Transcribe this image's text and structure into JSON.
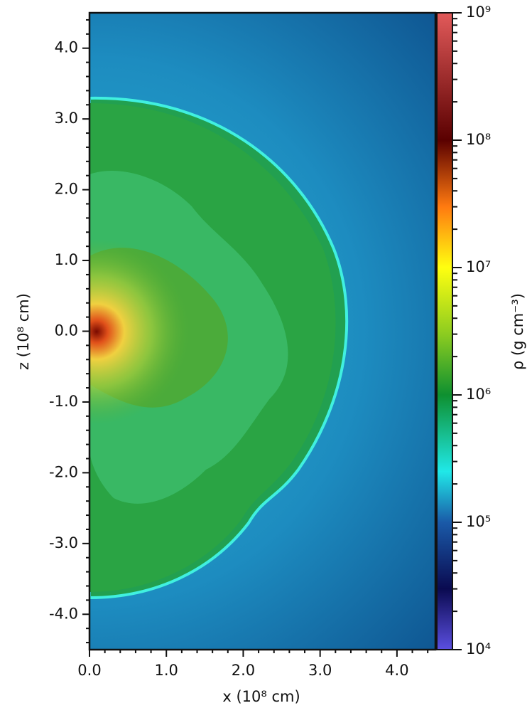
{
  "chart_data": {
    "type": "image",
    "xlabel": "x (10⁸ cm)",
    "ylabel": "z (10⁸ cm)",
    "colorbar_label": "ρ (g cm⁻³)",
    "xlim": [
      0,
      4.5
    ],
    "ylim": [
      -4.5,
      4.5
    ],
    "xticks": [
      {
        "value": 0,
        "label": "0.0"
      },
      {
        "value": 1,
        "label": "1.0"
      },
      {
        "value": 2,
        "label": "2.0"
      },
      {
        "value": 3,
        "label": "3.0"
      },
      {
        "value": 4,
        "label": "4.0"
      }
    ],
    "yticks": [
      {
        "value": -4,
        "label": "-4.0"
      },
      {
        "value": -3,
        "label": "-3.0"
      },
      {
        "value": -2,
        "label": "-2.0"
      },
      {
        "value": -1,
        "label": "-1.0"
      },
      {
        "value": 0,
        "label": "0.0"
      },
      {
        "value": 1,
        "label": "1.0"
      },
      {
        "value": 2,
        "label": "2.0"
      },
      {
        "value": 3,
        "label": "3.0"
      },
      {
        "value": 4,
        "label": "4.0"
      }
    ],
    "clim": [
      10000,
      1000000000
    ],
    "clog": true,
    "cticks": [
      {
        "value": 10000,
        "label": "10⁴"
      },
      {
        "value": 100000,
        "label": "10⁵"
      },
      {
        "value": 1000000,
        "label": "10⁶"
      },
      {
        "value": 10000000,
        "label": "10⁷"
      },
      {
        "value": 100000000,
        "label": "10⁸"
      },
      {
        "value": 1000000000,
        "label": "10⁹"
      }
    ],
    "colormap": [
      {
        "value": 10000,
        "color": "#5b4fe0"
      },
      {
        "value": 30000,
        "color": "#0a0a50"
      },
      {
        "value": 100000,
        "color": "#1a5aa8"
      },
      {
        "value": 250000,
        "color": "#20e8e8"
      },
      {
        "value": 1000000,
        "color": "#0e9030"
      },
      {
        "value": 3000000,
        "color": "#8ccc20"
      },
      {
        "value": 10000000,
        "color": "#ffff10"
      },
      {
        "value": 30000000,
        "color": "#ff7a10"
      },
      {
        "value": 100000000,
        "color": "#5a0000"
      },
      {
        "value": 1000000000,
        "color": "#e25a5a"
      }
    ]
  }
}
